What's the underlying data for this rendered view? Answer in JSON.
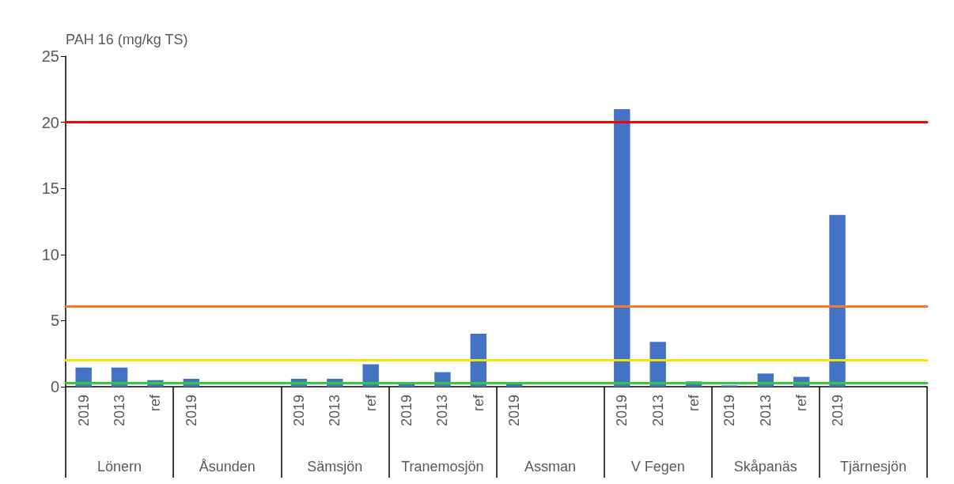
{
  "chart_data": {
    "type": "bar",
    "ylabel": "PAH 16 (mg/kg TS)",
    "categories": [
      "2019",
      "2013",
      "ref",
      "2019",
      null,
      null,
      "2019",
      "2013",
      "ref",
      "2019",
      "2013",
      "ref",
      "2019",
      null,
      null,
      "2019",
      "2013",
      "ref",
      "2019",
      "2013",
      "ref",
      "2019",
      null,
      null
    ],
    "values": [
      1.45,
      1.45,
      0.5,
      0.6,
      null,
      null,
      0.6,
      0.6,
      1.7,
      0.2,
      1.1,
      4.0,
      0.3,
      null,
      null,
      21,
      3.4,
      0.4,
      0.1,
      1.0,
      0.75,
      13,
      null,
      null
    ],
    "color": "#4472c4",
    "annotations": [
      "Lönern",
      "Åsunden",
      "Sämsjön",
      "Tranemosjön",
      "Assman",
      "V Fegen",
      "Skåpanäs",
      "Tjärnesjön"
    ],
    "ylim": [
      0,
      25
    ],
    "yticks": [
      0,
      5,
      10,
      15,
      20,
      25
    ],
    "grid": false,
    "ref_lines": [
      {
        "axis": "y",
        "value": 20,
        "color": "#ff0000"
      },
      {
        "axis": "y",
        "value": 6.1,
        "color": "#ed7d31"
      },
      {
        "axis": "y",
        "value": 2.0,
        "color": "#f2e600"
      },
      {
        "axis": "y",
        "value": 0.3,
        "color": "#33cc33"
      }
    ]
  }
}
